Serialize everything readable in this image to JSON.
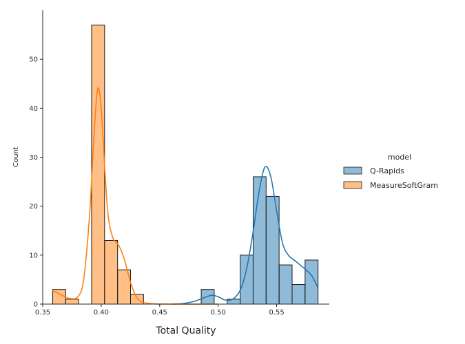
{
  "chart_data": {
    "type": "bar",
    "xlabel": "Total Quality",
    "ylabel": "Count",
    "xlim": [
      0.35,
      0.595
    ],
    "ylim": [
      0,
      60
    ],
    "xticks": [
      0.35,
      0.4,
      0.45,
      0.5,
      0.55
    ],
    "xtick_labels": [
      "0.35",
      "0.40",
      "0.45",
      "0.50",
      "0.55"
    ],
    "yticks": [
      0,
      10,
      20,
      30,
      40,
      50
    ],
    "ytick_labels": [
      "0",
      "10",
      "20",
      "30",
      "40",
      "50"
    ],
    "grid": false,
    "legend": {
      "title": "model",
      "placement": "right"
    },
    "series": [
      {
        "name": "Q-Rapids",
        "color": "#1f77b4",
        "bars": [
          {
            "x0": 0.4855,
            "x1": 0.4966,
            "count": 3
          },
          {
            "x0": 0.5077,
            "x1": 0.5188,
            "count": 1
          },
          {
            "x0": 0.5188,
            "x1": 0.5299,
            "count": 10
          },
          {
            "x0": 0.5299,
            "x1": 0.541,
            "count": 26
          },
          {
            "x0": 0.541,
            "x1": 0.5521,
            "count": 22
          },
          {
            "x0": 0.5521,
            "x1": 0.5632,
            "count": 8
          },
          {
            "x0": 0.5632,
            "x1": 0.5743,
            "count": 4
          },
          {
            "x0": 0.5743,
            "x1": 0.5854,
            "count": 9
          }
        ],
        "kde": [
          [
            0.46,
            0.0
          ],
          [
            0.47,
            0.1
          ],
          [
            0.48,
            0.6
          ],
          [
            0.49,
            1.5
          ],
          [
            0.495,
            1.8
          ],
          [
            0.5,
            1.5
          ],
          [
            0.505,
            0.9
          ],
          [
            0.51,
            0.8
          ],
          [
            0.515,
            1.5
          ],
          [
            0.52,
            3.5
          ],
          [
            0.525,
            8.0
          ],
          [
            0.53,
            15.0
          ],
          [
            0.535,
            23.0
          ],
          [
            0.54,
            28.0
          ],
          [
            0.545,
            26.0
          ],
          [
            0.55,
            19.0
          ],
          [
            0.555,
            12.5
          ],
          [
            0.56,
            10.0
          ],
          [
            0.565,
            9.0
          ],
          [
            0.57,
            8.0
          ],
          [
            0.575,
            7.0
          ],
          [
            0.58,
            5.8
          ],
          [
            0.585,
            3.5
          ]
        ]
      },
      {
        "name": "MeasureSoftGram",
        "color": "#ff7f0e",
        "bars": [
          {
            "x0": 0.3585,
            "x1": 0.3696,
            "count": 3
          },
          {
            "x0": 0.3696,
            "x1": 0.3807,
            "count": 1
          },
          {
            "x0": 0.3918,
            "x1": 0.4029,
            "count": 57
          },
          {
            "x0": 0.4029,
            "x1": 0.414,
            "count": 13
          },
          {
            "x0": 0.414,
            "x1": 0.4251,
            "count": 7
          },
          {
            "x0": 0.4251,
            "x1": 0.4362,
            "count": 2
          }
        ],
        "kde": [
          [
            0.358,
            2.8
          ],
          [
            0.365,
            2.0
          ],
          [
            0.372,
            1.2
          ],
          [
            0.38,
            1.5
          ],
          [
            0.385,
            5.0
          ],
          [
            0.39,
            18.0
          ],
          [
            0.394,
            35.0
          ],
          [
            0.397,
            44.0
          ],
          [
            0.4,
            40.0
          ],
          [
            0.403,
            28.0
          ],
          [
            0.406,
            18.0
          ],
          [
            0.41,
            13.5
          ],
          [
            0.415,
            12.0
          ],
          [
            0.42,
            9.0
          ],
          [
            0.425,
            4.5
          ],
          [
            0.43,
            1.5
          ],
          [
            0.435,
            0.4
          ],
          [
            0.445,
            0.05
          ],
          [
            0.46,
            0.0
          ],
          [
            0.5,
            0.0
          ]
        ]
      }
    ]
  }
}
